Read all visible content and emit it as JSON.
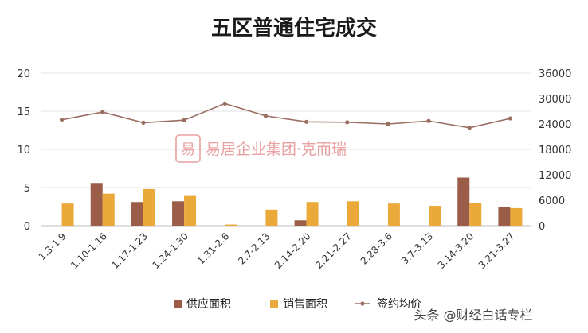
{
  "chart_data": {
    "type": "bar",
    "title": "五区普通住宅成交",
    "categories": [
      "1.3-1.9",
      "1.10-1.16",
      "1.17-1.23",
      "1.24-1.30",
      "1.31-2.6",
      "2.7-2.13",
      "2.14-2.20",
      "2.21-2.27",
      "2.28-3.6",
      "3.7-3.13",
      "3.14-3.20",
      "3.21-3.27"
    ],
    "series": [
      {
        "name": "供应面积",
        "type": "bar",
        "axis": "left",
        "color": "#9b5d48",
        "values": [
          0,
          5.6,
          3.1,
          3.2,
          0,
          0,
          0.7,
          0,
          0,
          0,
          6.3,
          2.5
        ]
      },
      {
        "name": "销售面积",
        "type": "bar",
        "axis": "left",
        "color": "#eba93a",
        "values": [
          2.9,
          4.2,
          4.8,
          4.0,
          0.15,
          2.1,
          3.1,
          3.2,
          2.9,
          2.6,
          3.0,
          2.3
        ]
      },
      {
        "name": "签约均价",
        "type": "line",
        "axis": "right",
        "color": "#9b6e62",
        "values": [
          25000,
          26800,
          24300,
          24900,
          28800,
          25900,
          24500,
          24400,
          24000,
          24700,
          23100,
          25300
        ]
      }
    ],
    "y_left": {
      "ticks": [
        "0",
        "5",
        "10",
        "15",
        "20"
      ],
      "ylim": [
        0,
        20
      ]
    },
    "y_right": {
      "ticks": [
        "0",
        "6000",
        "12000",
        "18000",
        "24000",
        "30000",
        "36000"
      ],
      "ylim": [
        0,
        36000
      ]
    },
    "grid": true,
    "legend_position": "bottom"
  },
  "watermark": {
    "logo_char": "易",
    "text": "易居企业集团·克而瑞"
  },
  "footer": {
    "text": "头条 @财经白话专栏"
  }
}
